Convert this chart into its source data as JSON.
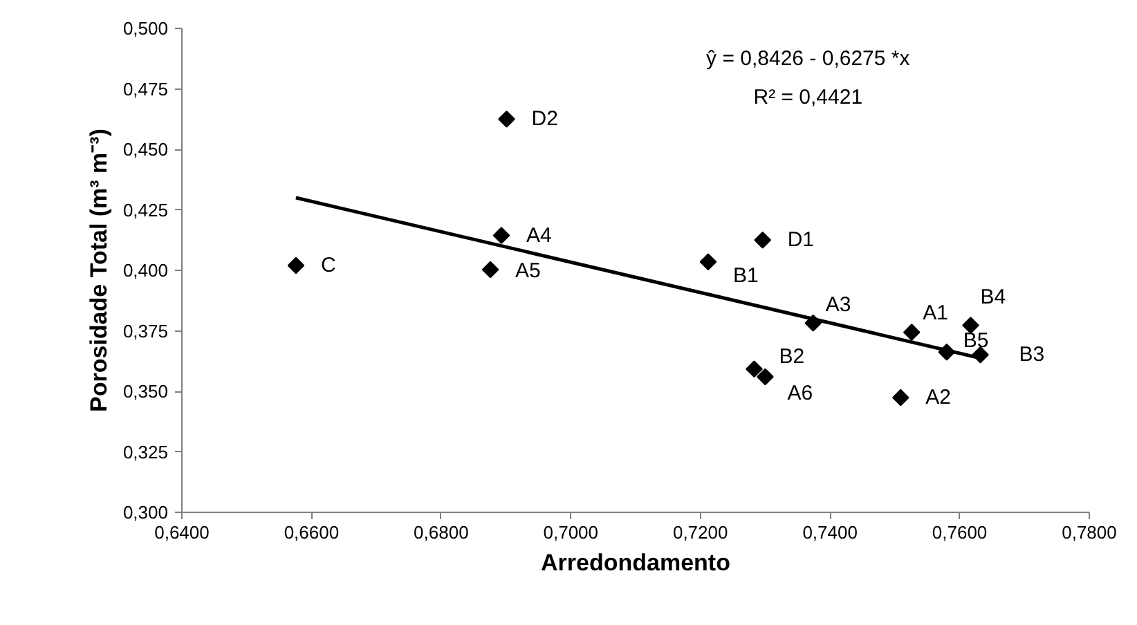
{
  "chart_data": {
    "type": "scatter",
    "xlabel": "Arredondamento",
    "ylabel": "Porosidade Total (m³ m⁻³)",
    "series": [
      {
        "color": "#000000",
        "marker": "diamond",
        "x": [
          0.6576,
          0.6901,
          0.6893,
          0.6876,
          0.7296,
          0.7212,
          0.7374,
          0.7526,
          0.7617,
          0.758,
          0.7632,
          0.7283,
          0.73,
          0.7509
        ],
        "values": [
          0.402,
          0.4625,
          0.4144,
          0.4003,
          0.4125,
          0.4035,
          0.3782,
          0.3744,
          0.3773,
          0.3662,
          0.3651,
          0.3592,
          0.356,
          0.3474
        ]
      },
      {
        "type": "line",
        "color": "#000000",
        "marker": "none",
        "line_style": "solid",
        "x": [
          0.6576,
          0.7632
        ],
        "values": [
          0.43,
          0.3637
        ]
      }
    ],
    "annotations": [
      "ŷ = 0,8426 - 0,6275 *x",
      "R² = 0,4421",
      {
        "text": "C",
        "x": 0.6576,
        "y": 0.402
      },
      {
        "text": "D2",
        "x": 0.6901,
        "y": 0.4625
      },
      {
        "text": "A4",
        "x": 0.6893,
        "y": 0.4144
      },
      {
        "text": "A5",
        "x": 0.6876,
        "y": 0.4003
      },
      {
        "text": "D1",
        "x": 0.7296,
        "y": 0.4125
      },
      {
        "text": "B1",
        "x": 0.7212,
        "y": 0.4035
      },
      {
        "text": "A3",
        "x": 0.7374,
        "y": 0.3782
      },
      {
        "text": "A1",
        "x": 0.7526,
        "y": 0.3744
      },
      {
        "text": "B4",
        "x": 0.7617,
        "y": 0.3773
      },
      {
        "text": "B5",
        "x": 0.758,
        "y": 0.3662
      },
      {
        "text": "B3",
        "x": 0.7632,
        "y": 0.3651
      },
      {
        "text": "B2",
        "x": 0.7283,
        "y": 0.3592
      },
      {
        "text": "A6",
        "x": 0.73,
        "y": 0.356
      },
      {
        "text": "A2",
        "x": 0.7509,
        "y": 0.3474
      }
    ],
    "xlim": [
      0.64,
      0.78
    ],
    "xticks": [
      {
        "value": 0.64,
        "label": "0,6400"
      },
      {
        "value": 0.66,
        "label": "0,6600"
      },
      {
        "value": 0.68,
        "label": "0,6800"
      },
      {
        "value": 0.7,
        "label": "0,7000"
      },
      {
        "value": 0.72,
        "label": "0,7200"
      },
      {
        "value": 0.74,
        "label": "0,7400"
      },
      {
        "value": 0.76,
        "label": "0,7600"
      },
      {
        "value": 0.78,
        "label": "0,7800"
      }
    ],
    "ylim": [
      0.3,
      0.5
    ],
    "yticks": [
      {
        "value": 0.3,
        "label": "0,300"
      },
      {
        "value": 0.325,
        "label": "0,325"
      },
      {
        "value": 0.35,
        "label": "0,350"
      },
      {
        "value": 0.375,
        "label": "0,375"
      },
      {
        "value": 0.4,
        "label": "0,400"
      },
      {
        "value": 0.425,
        "label": "0,425"
      },
      {
        "value": 0.45,
        "label": "0,450"
      },
      {
        "value": 0.475,
        "label": "0,475"
      },
      {
        "value": 0.5,
        "label": "0,500"
      }
    ],
    "grid": false
  }
}
